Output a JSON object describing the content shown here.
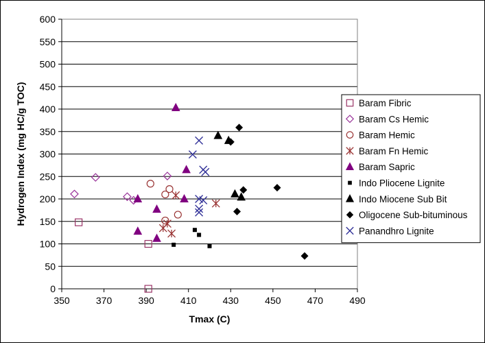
{
  "chart_data": {
    "type": "scatter",
    "xlabel": "Tmax (C)",
    "ylabel": "Hydrogen Index (mg HC/g TOC)",
    "xlim": [
      350,
      490
    ],
    "ylim": [
      0,
      600
    ],
    "xticks": [
      350,
      370,
      390,
      410,
      430,
      450,
      470,
      490
    ],
    "yticks": [
      0,
      50,
      100,
      150,
      200,
      250,
      300,
      350,
      400,
      450,
      500,
      550,
      600
    ],
    "grid": "horizontal",
    "legend_position": "right",
    "series": [
      {
        "name": "Baram Fibric",
        "marker": "square-open",
        "color": "#993366",
        "points": [
          [
            358,
            148
          ],
          [
            391,
            100
          ],
          [
            391,
            0
          ]
        ]
      },
      {
        "name": "Baram Cs Hemic",
        "marker": "diamond-open",
        "color": "#993399",
        "points": [
          [
            356,
            211
          ],
          [
            366,
            248
          ],
          [
            381,
            205
          ],
          [
            384,
            197
          ],
          [
            400,
            251
          ]
        ]
      },
      {
        "name": "Baram Hemic",
        "marker": "circle-open",
        "color": "#993333",
        "points": [
          [
            392,
            234
          ],
          [
            399,
            210
          ],
          [
            399,
            152
          ],
          [
            401,
            222
          ],
          [
            405,
            165
          ]
        ]
      },
      {
        "name": "Baram Fn Hemic",
        "marker": "star",
        "color": "#993333",
        "points": [
          [
            398,
            135
          ],
          [
            400,
            145
          ],
          [
            402,
            123
          ],
          [
            404,
            208
          ],
          [
            423,
            190
          ]
        ]
      },
      {
        "name": "Baram Sapric",
        "marker": "triangle",
        "color": "#800080",
        "points": [
          [
            386,
            200
          ],
          [
            386,
            128
          ],
          [
            395,
            177
          ],
          [
            395,
            112
          ],
          [
            404,
            403
          ],
          [
            408,
            200
          ],
          [
            409,
            265
          ]
        ]
      },
      {
        "name": "Indo Pliocene Lignite",
        "marker": "square-small",
        "color": "#000000",
        "points": [
          [
            403,
            98
          ],
          [
            413,
            131
          ],
          [
            415,
            120
          ],
          [
            420,
            95
          ]
        ]
      },
      {
        "name": "Indo Miocene Sub Bit",
        "marker": "triangle",
        "color": "#000000",
        "points": [
          [
            424,
            341
          ],
          [
            429,
            330
          ],
          [
            432,
            211
          ],
          [
            435,
            204
          ]
        ]
      },
      {
        "name": "Oligocene Sub-bituminous",
        "marker": "diamond",
        "color": "#000000",
        "points": [
          [
            430,
            327
          ],
          [
            433,
            172
          ],
          [
            434,
            359
          ],
          [
            436,
            220
          ],
          [
            452,
            225
          ],
          [
            465,
            73
          ]
        ]
      },
      {
        "name": "Panandhro Lignite",
        "marker": "x",
        "color": "#333399",
        "points": [
          [
            412,
            299
          ],
          [
            415,
            330
          ],
          [
            415,
            200
          ],
          [
            415,
            178
          ],
          [
            415,
            170
          ],
          [
            417,
            265
          ],
          [
            417,
            197
          ],
          [
            418,
            260
          ]
        ]
      }
    ]
  }
}
